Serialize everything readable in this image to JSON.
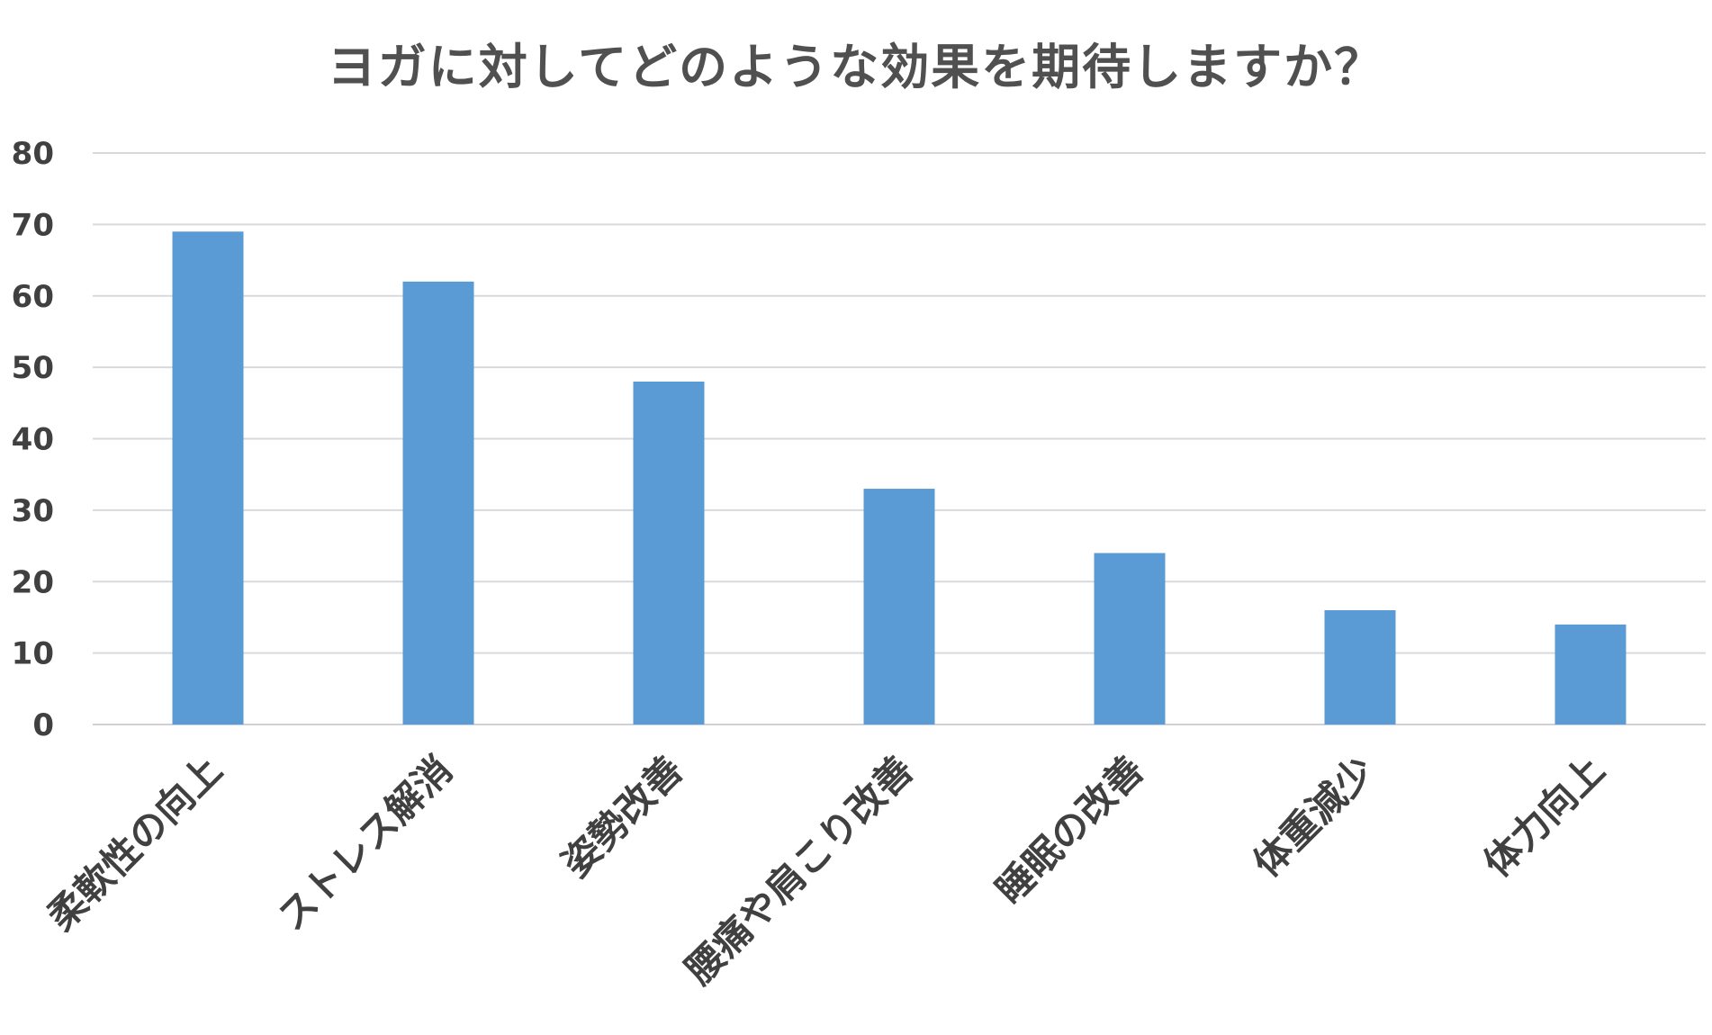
{
  "chart_data": {
    "type": "bar",
    "title": "ヨガに対してどのような効果を期待しますか？",
    "categories": [
      "柔軟性の向上",
      "ストレス解消",
      "姿勢改善",
      "腰痛や肩こり改善",
      "睡眠の改善",
      "体重減少",
      "体力向上"
    ],
    "values": [
      69,
      62,
      48,
      33,
      24,
      16,
      14
    ],
    "ylim": [
      0,
      80
    ],
    "yticks": [
      0,
      10,
      20,
      30,
      40,
      50,
      60,
      70,
      80
    ],
    "grid": true,
    "bar_color": "#5b9bd5",
    "grid_color": "#d9d9d9"
  }
}
